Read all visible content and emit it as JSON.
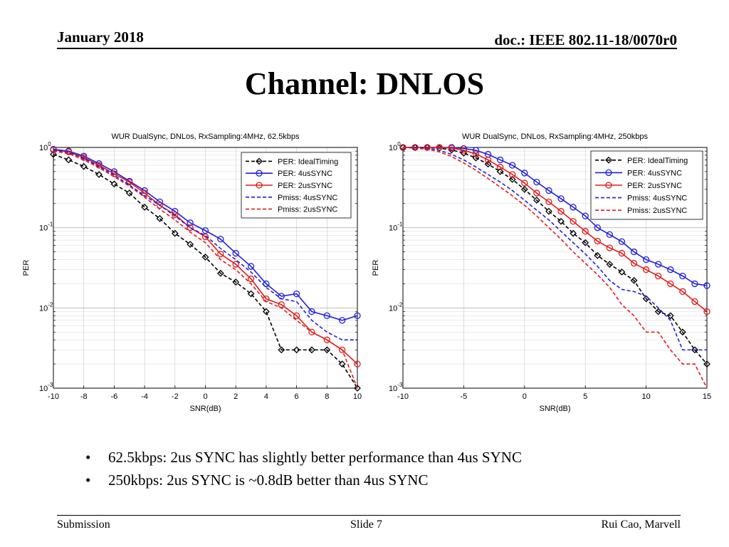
{
  "header": {
    "date": "January 2018",
    "doc": "doc.: IEEE 802.11-18/0070r0"
  },
  "slide_title": "Channel: DNLOS",
  "bullets": [
    {
      "marker": "•",
      "text": "62.5kbps: 2us SYNC has slightly better performance than 4us SYNC"
    },
    {
      "marker": "•",
      "text": "250kbps:  2us SYNC is ~0.8dB better than 4us SYNC"
    }
  ],
  "footer": {
    "left": "Submission",
    "center": "Slide 7",
    "right": "Rui Cao, Marvell"
  },
  "colors": {
    "ideal": "#000000",
    "sync4": "#1f1fe0",
    "sync2": "#e31b1b"
  },
  "chart_data": [
    {
      "type": "line",
      "title": "WUR DualSync, DNLos, RxSampling:4MHz, 62.5kbps",
      "xlabel": "SNR(dB)",
      "ylabel": "PER",
      "xlim": [
        -10,
        10
      ],
      "ylim": [
        0.001,
        1
      ],
      "yscale": "log",
      "xticks": [
        -10,
        -8,
        -6,
        -4,
        -2,
        0,
        2,
        4,
        6,
        8,
        10
      ],
      "yticks": [
        {
          "base": "10",
          "exp": "0",
          "value": 1
        },
        {
          "base": "10",
          "exp": "-1",
          "value": 0.1
        },
        {
          "base": "10",
          "exp": "-2",
          "value": 0.01
        },
        {
          "base": "10",
          "exp": "-3",
          "value": 0.001
        }
      ],
      "grid": true,
      "legend": "top-right",
      "x": [
        -10,
        -9,
        -8,
        -7,
        -6,
        -5,
        -4,
        -3,
        -2,
        -1,
        0,
        1,
        2,
        3,
        4,
        5,
        6,
        7,
        8,
        9,
        10
      ],
      "series": [
        {
          "name": "PER: IdealTiming",
          "color": "#000000",
          "dash": "dashed",
          "marker": "diamond",
          "values": [
            0.82,
            0.7,
            0.58,
            0.46,
            0.35,
            0.27,
            0.18,
            0.13,
            0.085,
            0.062,
            0.043,
            0.027,
            0.021,
            0.015,
            0.009,
            0.003,
            0.003,
            0.003,
            0.003,
            0.002,
            0.001
          ]
        },
        {
          "name": "PER: 4usSYNC",
          "color": "#1f1fe0",
          "dash": "solid",
          "marker": "circle",
          "values": [
            0.95,
            0.9,
            0.78,
            0.63,
            0.5,
            0.38,
            0.29,
            0.21,
            0.16,
            0.115,
            0.092,
            0.072,
            0.048,
            0.033,
            0.02,
            0.014,
            0.015,
            0.009,
            0.008,
            0.007,
            0.008
          ]
        },
        {
          "name": "PER: 2usSYNC",
          "color": "#e31b1b",
          "dash": "solid",
          "marker": "circle",
          "values": [
            0.93,
            0.88,
            0.75,
            0.6,
            0.47,
            0.37,
            0.27,
            0.19,
            0.145,
            0.1,
            0.077,
            0.047,
            0.035,
            0.023,
            0.013,
            0.011,
            0.008,
            0.005,
            0.004,
            0.003,
            0.002
          ]
        },
        {
          "name": "Pmiss: 4usSYNC",
          "color": "#1f1fe0",
          "dash": "dashed",
          "marker": "none",
          "values": [
            0.93,
            0.87,
            0.73,
            0.58,
            0.45,
            0.34,
            0.25,
            0.19,
            0.14,
            0.1,
            0.08,
            0.055,
            0.04,
            0.028,
            0.018,
            0.013,
            0.012,
            0.007,
            0.005,
            0.004,
            0.004
          ]
        },
        {
          "name": "Pmiss: 2usSYNC",
          "color": "#e31b1b",
          "dash": "dashed",
          "marker": "none",
          "values": [
            0.9,
            0.84,
            0.7,
            0.56,
            0.43,
            0.33,
            0.24,
            0.17,
            0.125,
            0.088,
            0.065,
            0.04,
            0.03,
            0.02,
            0.012,
            0.01,
            0.007,
            0.005,
            0.004,
            0.003,
            0.001
          ]
        }
      ]
    },
    {
      "type": "line",
      "title": "WUR DualSync, DNLos, RxSampling:4MHz, 250kbps",
      "xlabel": "SNR(dB)",
      "ylabel": "PER",
      "xlim": [
        -10,
        15
      ],
      "ylim": [
        0.001,
        1
      ],
      "yscale": "log",
      "xticks": [
        -10,
        -5,
        0,
        5,
        10,
        15
      ],
      "yticks": [
        {
          "base": "10",
          "exp": "0",
          "value": 1
        },
        {
          "base": "10",
          "exp": "-1",
          "value": 0.1
        },
        {
          "base": "10",
          "exp": "-2",
          "value": 0.01
        },
        {
          "base": "10",
          "exp": "-3",
          "value": 0.001
        }
      ],
      "grid": true,
      "legend": "top-right",
      "x": [
        -10,
        -9,
        -8,
        -7,
        -6,
        -5,
        -4,
        -3,
        -2,
        -1,
        0,
        1,
        2,
        3,
        4,
        5,
        6,
        7,
        8,
        9,
        10,
        11,
        12,
        13,
        14,
        15
      ],
      "series": [
        {
          "name": "PER: IdealTiming",
          "color": "#000000",
          "dash": "dashed",
          "marker": "diamond",
          "values": [
            1.0,
            1.0,
            1.0,
            0.98,
            0.93,
            0.85,
            0.74,
            0.62,
            0.5,
            0.4,
            0.3,
            0.22,
            0.16,
            0.12,
            0.085,
            0.065,
            0.045,
            0.035,
            0.028,
            0.022,
            0.013,
            0.009,
            0.008,
            0.005,
            0.003,
            0.002
          ]
        },
        {
          "name": "PER: 4usSYNC",
          "color": "#1f1fe0",
          "dash": "solid",
          "marker": "circle",
          "values": [
            1.0,
            1.0,
            1.0,
            1.0,
            1.0,
            0.97,
            0.92,
            0.82,
            0.7,
            0.6,
            0.48,
            0.37,
            0.29,
            0.23,
            0.18,
            0.14,
            0.1,
            0.082,
            0.067,
            0.05,
            0.04,
            0.035,
            0.03,
            0.025,
            0.02,
            0.019
          ]
        },
        {
          "name": "PER: 2usSYNC",
          "color": "#e31b1b",
          "dash": "solid",
          "marker": "circle",
          "values": [
            1.0,
            1.0,
            1.0,
            1.0,
            0.98,
            0.92,
            0.83,
            0.7,
            0.57,
            0.46,
            0.36,
            0.27,
            0.21,
            0.16,
            0.12,
            0.09,
            0.068,
            0.056,
            0.048,
            0.036,
            0.03,
            0.025,
            0.02,
            0.016,
            0.012,
            0.009
          ]
        },
        {
          "name": "Pmiss: 4usSYNC",
          "color": "#1f1fe0",
          "dash": "dashed",
          "marker": "none",
          "values": [
            1.0,
            1.0,
            0.98,
            0.92,
            0.82,
            0.7,
            0.57,
            0.46,
            0.37,
            0.29,
            0.22,
            0.165,
            0.125,
            0.09,
            0.065,
            0.047,
            0.033,
            0.022,
            0.017,
            0.016,
            0.014,
            0.01,
            0.007,
            0.003,
            0.003,
            0.003
          ]
        },
        {
          "name": "Pmiss: 2usSYNC",
          "color": "#e31b1b",
          "dash": "dashed",
          "marker": "none",
          "values": [
            1.0,
            0.98,
            0.95,
            0.88,
            0.77,
            0.64,
            0.52,
            0.41,
            0.32,
            0.25,
            0.19,
            0.14,
            0.1,
            0.072,
            0.05,
            0.036,
            0.026,
            0.018,
            0.011,
            0.008,
            0.005,
            0.005,
            0.003,
            0.002,
            0.002,
            0.001
          ]
        }
      ]
    }
  ]
}
